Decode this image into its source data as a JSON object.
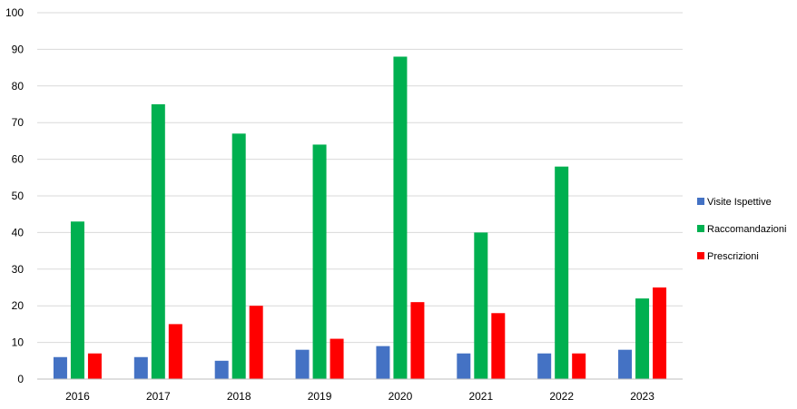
{
  "chart_data": {
    "type": "bar",
    "categories": [
      "2016",
      "2017",
      "2018",
      "2019",
      "2020",
      "2021",
      "2022",
      "2023"
    ],
    "series": [
      {
        "name": "Visite Ispettive",
        "color": "#4472C4",
        "values": [
          6,
          6,
          5,
          8,
          9,
          7,
          7,
          8
        ]
      },
      {
        "name": "Raccomandazioni",
        "color": "#00B050",
        "values": [
          43,
          75,
          67,
          64,
          88,
          40,
          58,
          22
        ]
      },
      {
        "name": "Prescrizioni",
        "color": "#FF0000",
        "values": [
          7,
          15,
          20,
          11,
          21,
          18,
          7,
          25
        ]
      }
    ],
    "ylim": [
      0,
      100
    ],
    "yticks": [
      0,
      10,
      20,
      30,
      40,
      50,
      60,
      70,
      80,
      90,
      100
    ],
    "grid": true,
    "legend_position": "right",
    "title": "",
    "xlabel": "",
    "ylabel": ""
  }
}
